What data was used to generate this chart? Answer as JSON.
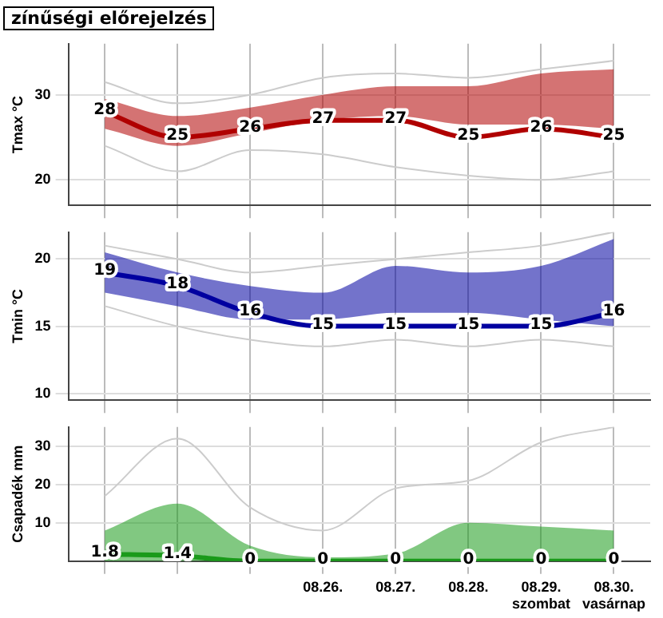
{
  "chart_data": [
    {
      "type": "line",
      "title": "zínűségi előrejelzés",
      "ylabel": "Tmax °C",
      "categories": [
        null,
        null,
        null,
        null,
        null,
        null,
        null,
        null
      ],
      "ylim": [
        17,
        36
      ],
      "yticks": [
        20,
        30
      ],
      "grid": true,
      "tick_labels": "y",
      "legend": false,
      "marker": "none",
      "series": [
        {
          "color": "#b00000",
          "values": [
            28,
            25,
            26,
            27,
            27,
            25,
            26,
            25
          ],
          "value_labels": [
            "28",
            "25",
            "26",
            "27",
            "27",
            "25",
            "26",
            "25"
          ],
          "lower": [
            26,
            24,
            25.5,
            27,
            27.5,
            26.5,
            26.5,
            26
          ],
          "upper": [
            29.5,
            27.5,
            28.5,
            30,
            31,
            31,
            32.5,
            33
          ]
        },
        {
          "color": "#cccccc",
          "values": [
            31.5,
            29,
            30,
            32,
            32.5,
            32,
            33,
            34
          ]
        },
        {
          "color": "#cccccc",
          "values": [
            24,
            21,
            23.5,
            23,
            21.5,
            20.5,
            20,
            21
          ]
        }
      ]
    },
    {
      "type": "line",
      "ylabel": "Tmin °C",
      "categories": [
        null,
        null,
        null,
        null,
        null,
        null,
        null,
        null
      ],
      "ylim": [
        9.5,
        22
      ],
      "yticks": [
        10,
        15,
        20
      ],
      "grid": true,
      "tick_labels": "y",
      "legend": false,
      "marker": "none",
      "series": [
        {
          "color": "#0000a0",
          "values": [
            19,
            18,
            16,
            15,
            15,
            15,
            15,
            16
          ],
          "value_labels": [
            "19",
            "18",
            "16",
            "15",
            "15",
            "15",
            "15",
            "16"
          ],
          "lower": [
            17.5,
            16.5,
            15.5,
            15.5,
            16,
            16,
            15.5,
            15
          ],
          "upper": [
            20.5,
            19,
            18,
            17.5,
            19.5,
            19,
            19.5,
            21.5
          ]
        },
        {
          "color": "#cccccc",
          "values": [
            21,
            20,
            19,
            19.5,
            20,
            20.5,
            21,
            22
          ]
        },
        {
          "color": "#cccccc",
          "values": [
            16.5,
            15,
            14,
            13.5,
            14,
            13.5,
            14,
            13.5
          ]
        }
      ]
    },
    {
      "type": "line",
      "ylabel": "Csapadék mm",
      "categories": [
        null,
        null,
        null,
        "08.26.",
        "08.27.",
        "08.28.",
        "08.29.\nszombat",
        "08.30.\nvasárnap"
      ],
      "ylim": [
        0,
        35
      ],
      "yticks": [
        10,
        20,
        30
      ],
      "grid": true,
      "legend": false,
      "marker": "none",
      "series": [
        {
          "color": "#1a9a1a",
          "values": [
            1.8,
            1.4,
            0,
            0,
            0,
            0,
            0,
            0
          ],
          "value_labels": [
            "1.8",
            "1.4",
            "0",
            "0",
            "0",
            "0",
            "0",
            "0"
          ],
          "lower": [
            0,
            0,
            0,
            0,
            0,
            0,
            0,
            0
          ],
          "upper": [
            8,
            15,
            4,
            1,
            2,
            10,
            9,
            8
          ]
        },
        {
          "color": "#cccccc",
          "values": [
            17,
            32,
            14,
            8,
            19,
            21,
            31,
            35
          ]
        }
      ]
    }
  ]
}
